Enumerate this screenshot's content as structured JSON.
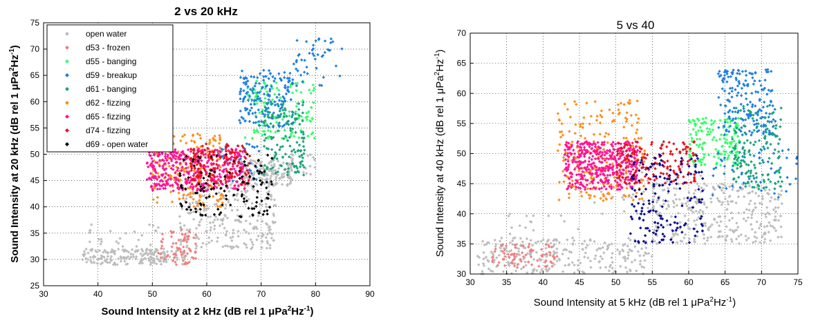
{
  "chart_data": [
    {
      "type": "scatter",
      "title": "2 vs 20 kHz",
      "xlabel": "Sound Intensity at 2 kHz (dB rel 1 μPa²Hz⁻¹)",
      "ylabel": "Sound Intensity at 20 kHz (dB rel 1 μPa²Hz⁻¹)",
      "xlim": [
        30,
        90
      ],
      "ylim": [
        25,
        75
      ],
      "xticks": [
        "30",
        "40",
        "50",
        "60",
        "70",
        "80",
        "90"
      ],
      "yticks": [
        "25",
        "30",
        "35",
        "40",
        "45",
        "50",
        "55",
        "60",
        "65",
        "70",
        "75"
      ],
      "grid": true,
      "legend_position": "top-left",
      "series": [
        {
          "name": "open water",
          "color": "#bdbdbd",
          "clusters": [
            {
              "x": [
                37,
                56
              ],
              "y": [
                29,
                32
              ],
              "n": 180
            },
            {
              "x": [
                55,
                73
              ],
              "y": [
                32,
                45
              ],
              "n": 260
            },
            {
              "x": [
                66,
                76
              ],
              "y": [
                44,
                49
              ],
              "n": 160
            },
            {
              "x": [
                38,
                52
              ],
              "y": [
                30,
                37
              ],
              "n": 40
            },
            {
              "x": [
                74,
                80
              ],
              "y": [
                46,
                50
              ],
              "n": 20
            }
          ]
        },
        {
          "name": "d53 - frozen",
          "color": "#f08080",
          "clusters": [
            {
              "x": [
                51,
                58
              ],
              "y": [
                29,
                36
              ],
              "n": 70
            }
          ]
        },
        {
          "name": "d55 - banging",
          "color": "#33ff66",
          "clusters": [
            {
              "x": [
                67,
                80
              ],
              "y": [
                53,
                64
              ],
              "n": 130
            }
          ]
        },
        {
          "name": "d59 - breakup",
          "color": "#1e7fe0",
          "clusters": [
            {
              "x": [
                66,
                76
              ],
              "y": [
                55,
                66
              ],
              "n": 170
            },
            {
              "x": [
                76,
                85
              ],
              "y": [
                63,
                72
              ],
              "n": 45
            },
            {
              "x": [
                62,
                70
              ],
              "y": [
                44,
                52
              ],
              "n": 40
            }
          ]
        },
        {
          "name": "d61 - banging",
          "color": "#1aa37a",
          "clusters": [
            {
              "x": [
                70,
                78
              ],
              "y": [
                46,
                60
              ],
              "n": 140
            }
          ]
        },
        {
          "name": "d62 - fizzing",
          "color": "#ff8c1a",
          "clusters": [
            {
              "x": [
                50,
                63
              ],
              "y": [
                40,
                54
              ],
              "n": 200
            }
          ]
        },
        {
          "name": "d65 - fizzing",
          "color": "#ff1493",
          "clusters": [
            {
              "x": [
                49,
                67
              ],
              "y": [
                43,
                51
              ],
              "n": 420
            }
          ]
        },
        {
          "name": "d74 - fizzing",
          "color": "#e8101e",
          "clusters": [
            {
              "x": [
                57,
                68
              ],
              "y": [
                44,
                52
              ],
              "n": 140
            }
          ]
        },
        {
          "name": "d69 - open water",
          "color": "#000000",
          "clusters": [
            {
              "x": [
                55,
                72
              ],
              "y": [
                38,
                50
              ],
              "n": 130
            }
          ]
        }
      ]
    },
    {
      "type": "scatter",
      "title": "5 vs 40",
      "xlabel": "Sound Intensity at 5 kHz (dB rel 1 μPa²Hz⁻¹)",
      "ylabel": "Sound Intensity at 40 kHz (dB rel 1 μPa²Hz⁻¹)",
      "xlim": [
        30,
        75
      ],
      "ylim": [
        30,
        70
      ],
      "xticks": [
        "30",
        "35",
        "40",
        "45",
        "50",
        "55",
        "60",
        "65",
        "70",
        "75"
      ],
      "yticks": [
        "30",
        "35",
        "40",
        "45",
        "50",
        "55",
        "60",
        "65",
        "70"
      ],
      "grid": true,
      "series": [
        {
          "name": "open water",
          "color": "#bdbdbd",
          "clusters": [
            {
              "x": [
                31,
                55
              ],
              "y": [
                30,
                36
              ],
              "n": 240
            },
            {
              "x": [
                55,
                73
              ],
              "y": [
                35,
                45
              ],
              "n": 300
            },
            {
              "x": [
                47,
                62
              ],
              "y": [
                40,
                48
              ],
              "n": 60
            },
            {
              "x": [
                35,
                45
              ],
              "y": [
                31,
                40
              ],
              "n": 40
            }
          ]
        },
        {
          "name": "d53 - frozen",
          "color": "#f08080",
          "clusters": [
            {
              "x": [
                33,
                42
              ],
              "y": [
                31,
                35
              ],
              "n": 80
            }
          ]
        },
        {
          "name": "d55 - banging",
          "color": "#33ff66",
          "clusters": [
            {
              "x": [
                60,
                67
              ],
              "y": [
                48,
                56
              ],
              "n": 150
            }
          ]
        },
        {
          "name": "d59 - breakup",
          "color": "#1e7fe0",
          "clusters": [
            {
              "x": [
                64,
                72
              ],
              "y": [
                53,
                64
              ],
              "n": 180
            },
            {
              "x": [
                63,
                75
              ],
              "y": [
                42,
                52
              ],
              "n": 50
            }
          ]
        },
        {
          "name": "d61 - banging",
          "color": "#1aa37a",
          "clusters": [
            {
              "x": [
                66,
                73
              ],
              "y": [
                44,
                58
              ],
              "n": 150
            }
          ]
        },
        {
          "name": "d62 - fizzing",
          "color": "#ff8c1a",
          "clusters": [
            {
              "x": [
                42,
                54
              ],
              "y": [
                42,
                59
              ],
              "n": 230
            }
          ]
        },
        {
          "name": "d65 - fizzing",
          "color": "#ff1493",
          "clusters": [
            {
              "x": [
                43,
                53
              ],
              "y": [
                44,
                52
              ],
              "n": 420
            }
          ]
        },
        {
          "name": "d74 - fizzing",
          "color": "#e8101e",
          "clusters": [
            {
              "x": [
                50,
                61
              ],
              "y": [
                45,
                52
              ],
              "n": 150
            }
          ]
        },
        {
          "name": "dark-blue",
          "color": "#0a0a8c",
          "clusters": [
            {
              "x": [
                52,
                62
              ],
              "y": [
                35,
                50
              ],
              "n": 160
            }
          ]
        }
      ]
    }
  ]
}
